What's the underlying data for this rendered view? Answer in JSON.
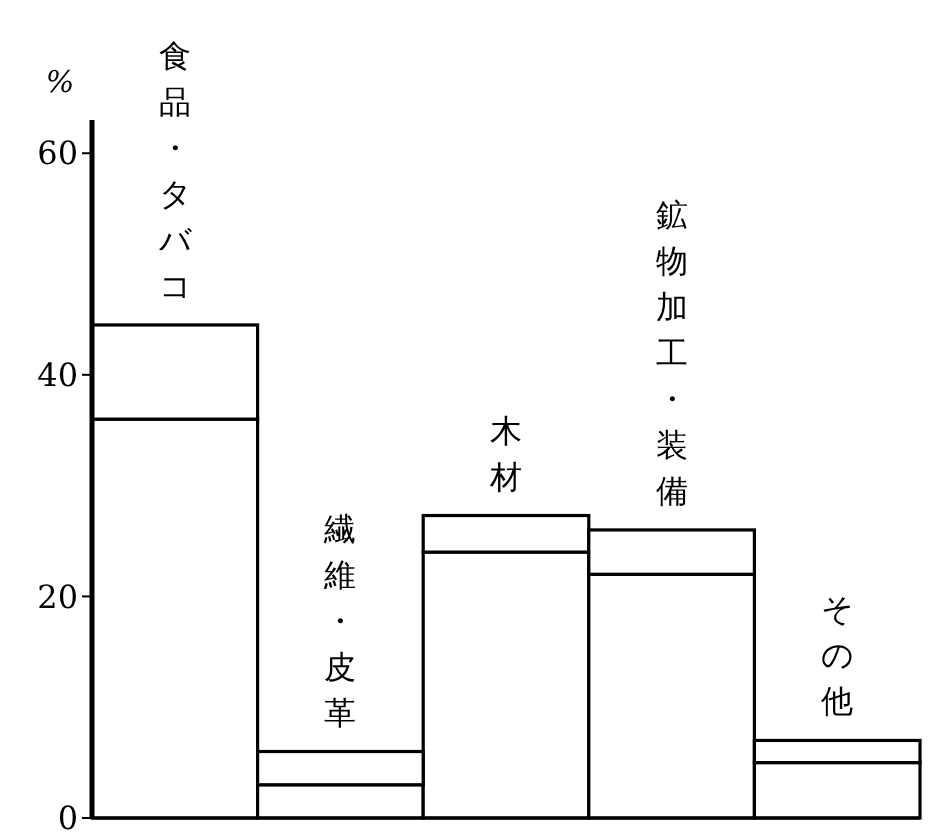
{
  "chart_data": {
    "type": "bar",
    "stacked": true,
    "ylabel": "%",
    "categories": [
      "食品・タバコ",
      "繊維・皮革",
      "木材",
      "鉱物加工・装備",
      "その他"
    ],
    "series": [
      {
        "color": "#ffffff",
        "values": [
          36,
          3,
          24,
          22,
          5
        ]
      },
      {
        "color": "#ffffff",
        "values": [
          8.5,
          3,
          3.3,
          4,
          2
        ]
      }
    ],
    "ylim": [
      0,
      63
    ],
    "yticks": [
      0,
      20,
      40,
      60
    ],
    "grid": false
  }
}
